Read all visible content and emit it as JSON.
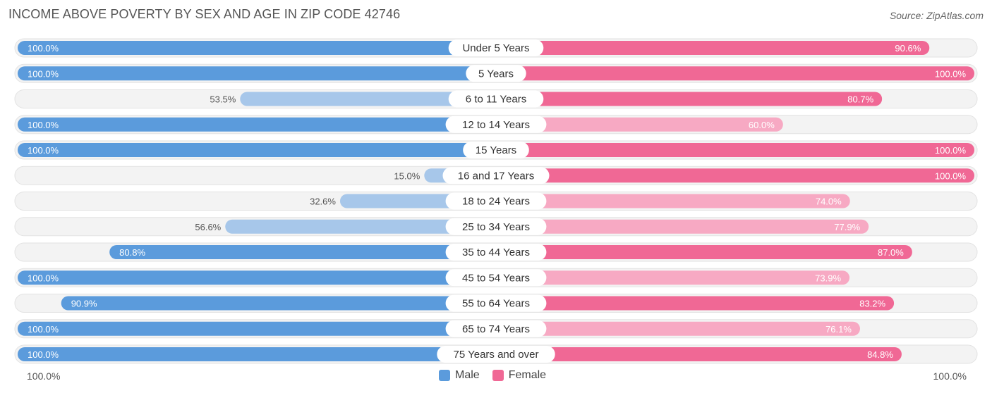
{
  "title": "INCOME ABOVE POVERTY BY SEX AND AGE IN ZIP CODE 42746",
  "source": "Source: ZipAtlas.com",
  "axis": {
    "left_label": "100.0%",
    "right_label": "100.0%"
  },
  "legend": {
    "male": "Male",
    "female": "Female"
  },
  "colors": {
    "male_strong": "#5b9bdc",
    "male_light": "#a7c7ea",
    "female_strong": "#f06895",
    "female_light": "#f7a9c3",
    "track": "#f1f1f1"
  },
  "chart_data": {
    "type": "bar",
    "orientation": "horizontal-diverging",
    "xlim": [
      0,
      100
    ],
    "categories": [
      "Under 5 Years",
      "5 Years",
      "6 to 11 Years",
      "12 to 14 Years",
      "15 Years",
      "16 and 17 Years",
      "18 to 24 Years",
      "25 to 34 Years",
      "35 to 44 Years",
      "45 to 54 Years",
      "55 to 64 Years",
      "65 to 74 Years",
      "75 Years and over"
    ],
    "series": [
      {
        "name": "Male",
        "values": [
          100.0,
          100.0,
          53.5,
          100.0,
          100.0,
          15.0,
          32.6,
          56.6,
          80.8,
          100.0,
          90.9,
          100.0,
          100.0
        ]
      },
      {
        "name": "Female",
        "values": [
          90.6,
          100.0,
          80.7,
          60.0,
          100.0,
          100.0,
          74.0,
          77.9,
          87.0,
          73.9,
          83.2,
          76.1,
          84.8
        ]
      }
    ],
    "value_labels": {
      "male": [
        "100.0%",
        "100.0%",
        "53.5%",
        "100.0%",
        "100.0%",
        "15.0%",
        "32.6%",
        "56.6%",
        "80.8%",
        "100.0%",
        "90.9%",
        "100.0%",
        "100.0%"
      ],
      "female": [
        "90.6%",
        "100.0%",
        "80.7%",
        "60.0%",
        "100.0%",
        "100.0%",
        "74.0%",
        "77.9%",
        "87.0%",
        "73.9%",
        "83.2%",
        "76.1%",
        "84.8%"
      ]
    }
  }
}
